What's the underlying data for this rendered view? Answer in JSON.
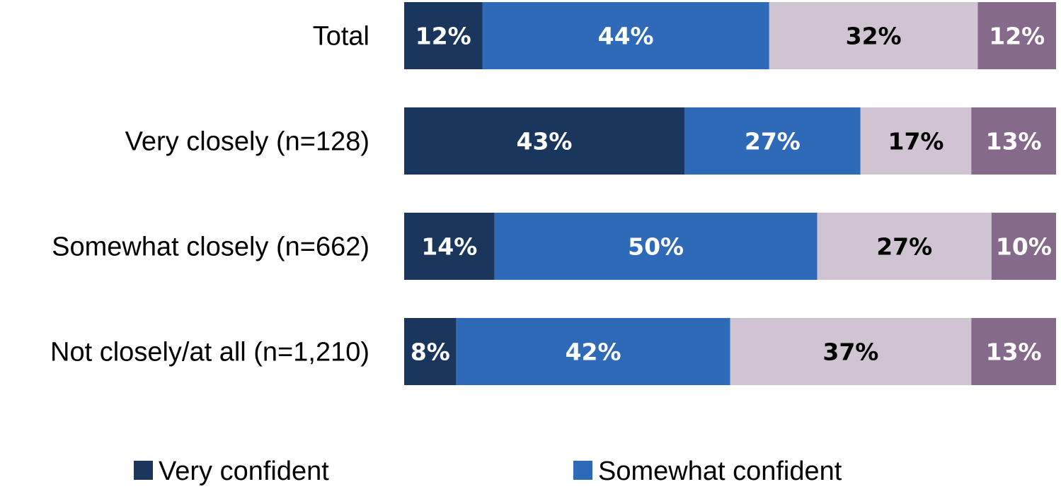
{
  "chart_data": {
    "type": "bar",
    "orientation": "horizontal",
    "stacked": true,
    "categories": [
      "Total",
      "Very closely (n=128)",
      "Somewhat closely (n=662)",
      "Not closely/at all (n=1,210)"
    ],
    "series": [
      {
        "name": "Very confident",
        "color": "#1b365d",
        "label_color": "#ffffff",
        "values": [
          12,
          43,
          14,
          8
        ]
      },
      {
        "name": "Somewhat confident",
        "color": "#2e6ab8",
        "label_color": "#ffffff",
        "values": [
          44,
          27,
          50,
          42
        ]
      },
      {
        "color": "#d0c4d2",
        "label_color": "#000000",
        "values": [
          32,
          17,
          27,
          37
        ]
      },
      {
        "color": "#866a8b",
        "label_color": "#ffffff",
        "values": [
          12,
          13,
          10,
          13
        ]
      }
    ],
    "data_labels": [
      [
        "12%",
        "44%",
        "32%",
        "12%"
      ],
      [
        "43%",
        "27%",
        "17%",
        "13%"
      ],
      [
        "14%",
        "50%",
        "27%",
        "10%"
      ],
      [
        "8%",
        "42%",
        "37%",
        "13%"
      ]
    ],
    "value_unit": "%",
    "xlim": [
      0,
      100
    ],
    "grid": false,
    "title": "",
    "xlabel": "",
    "ylabel": "",
    "legend": {
      "position": "bottom",
      "entries": [
        "Very confident",
        "Somewhat confident"
      ]
    }
  }
}
